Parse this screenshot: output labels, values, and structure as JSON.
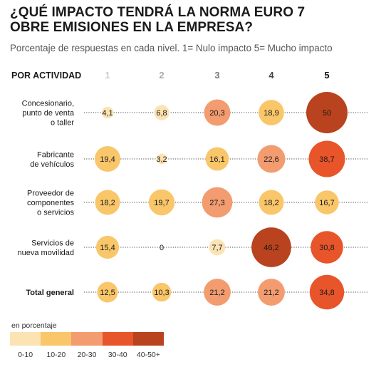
{
  "header": {
    "title_line1": "¿QUÉ IMPACTO TENDRÁ LA NORMA EURO 7",
    "title_line2": "OBRE EMISIONES EN LA EMPRESA?",
    "subtitle": "Porcentaje de respuestas en cada nivel. 1= Nulo impacto 5= Mucho impacto"
  },
  "chart_data": {
    "type": "bubble-matrix",
    "row_header": "POR ACTIVIDAD",
    "columns": [
      "1",
      "2",
      "3",
      "4",
      "5"
    ],
    "rows": [
      {
        "label": [
          "Concesionario,",
          "punto de venta",
          "o taller"
        ],
        "values": [
          4.1,
          6.8,
          20.3,
          18.9,
          50
        ],
        "value_labels": [
          "4,1",
          "6,8",
          "20,3",
          "18,9",
          "50"
        ],
        "bold": false
      },
      {
        "label": [
          "Fabricante",
          "de vehículos"
        ],
        "values": [
          19.4,
          3.2,
          16.1,
          22.6,
          38.7
        ],
        "value_labels": [
          "19,4",
          "3,2",
          "16,1",
          "22,6",
          "38,7"
        ],
        "bold": false
      },
      {
        "label": [
          "Proveedor de",
          "componentes",
          "o servicios"
        ],
        "values": [
          18.2,
          19.7,
          27.3,
          18.2,
          16.7
        ],
        "value_labels": [
          "18,2",
          "19,7",
          "27,3",
          "18,2",
          "16,7"
        ],
        "bold": false
      },
      {
        "label": [
          "Servicios de",
          "nueva movilidad"
        ],
        "values": [
          15.4,
          0,
          7.7,
          46.2,
          30.8
        ],
        "value_labels": [
          "15,4",
          "0",
          "7,7",
          "46,2",
          "30,8"
        ],
        "bold": false
      },
      {
        "label": [
          "Total general"
        ],
        "values": [
          12.5,
          10.3,
          21.2,
          21.2,
          34.8
        ],
        "value_labels": [
          "12,5",
          "10,3",
          "21,2",
          "21,2",
          "34,8"
        ],
        "bold": true
      }
    ],
    "color_scale": {
      "title": "en porcentaje",
      "bins": [
        {
          "label": "0-10",
          "color": "#fce3b4"
        },
        {
          "label": "10-20",
          "color": "#f9c66a"
        },
        {
          "label": "20-30",
          "color": "#f29c70"
        },
        {
          "label": "30-40",
          "color": "#e8552a"
        },
        {
          "label": "40-50+",
          "color": "#b8431e"
        }
      ]
    }
  }
}
